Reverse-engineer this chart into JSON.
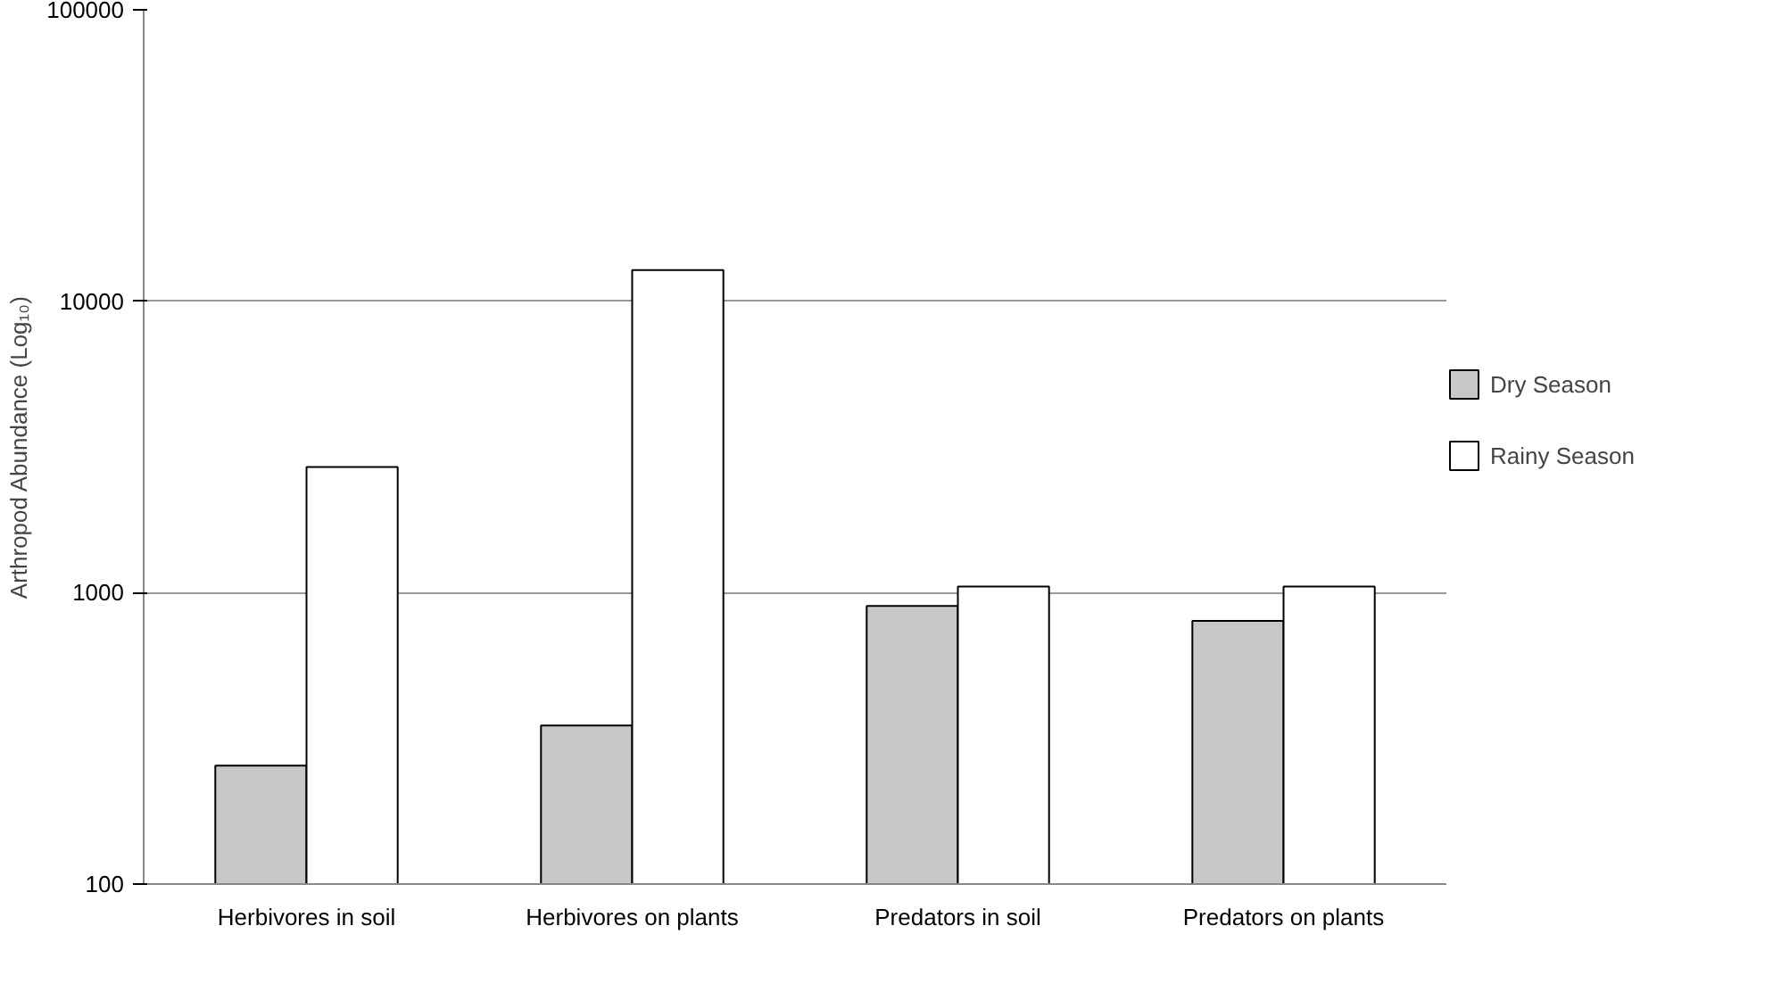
{
  "chart_data": {
    "type": "bar",
    "ylabel": "Arthropod Abundance (Log₁₀)",
    "categories": [
      "Herbivores in soil",
      "Herbivores on plants",
      "Predators in soil",
      "Predators on plants"
    ],
    "series": [
      {
        "name": "Dry Season",
        "color": "#c8c8c8",
        "values": [
          255,
          350,
          900,
          800
        ]
      },
      {
        "name": "Rainy Season",
        "color": "#ffffff",
        "values": [
          2700,
          12800,
          1050,
          1050
        ]
      }
    ],
    "log": true,
    "ylim": [
      100,
      100000
    ],
    "yticks": [
      100,
      1000,
      10000,
      100000
    ],
    "grid": "y",
    "legend": "right"
  }
}
